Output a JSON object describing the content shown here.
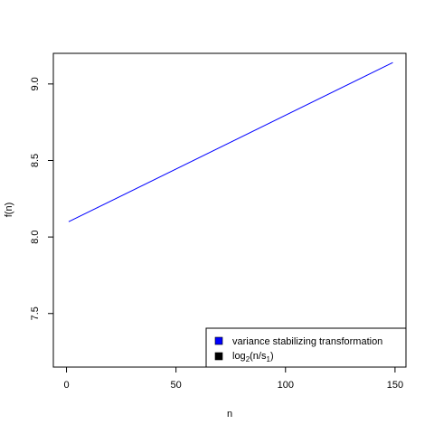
{
  "chart_data": {
    "type": "line",
    "title": "",
    "xlabel": "n",
    "ylabel": "f(n)",
    "xlim": [
      -6,
      155
    ],
    "ylim": [
      7.15,
      9.2
    ],
    "x_ticks": [
      0,
      50,
      100,
      150
    ],
    "y_ticks": [
      7.5,
      8.0,
      8.5,
      9.0
    ],
    "x_tick_labels": [
      "0",
      "50",
      "100",
      "150"
    ],
    "y_tick_labels": [
      "7.5",
      "8.0",
      "8.5",
      "9.0"
    ],
    "grid": false,
    "legend_position": "bottom-right",
    "series": [
      {
        "name": "variance stabilizing transformation",
        "color": "#0000ff",
        "x": [
          1,
          149
        ],
        "y": [
          8.1,
          9.14
        ]
      }
    ],
    "legend": {
      "items": [
        {
          "color": "#0000ff",
          "label": "variance stabilizing transformation"
        },
        {
          "color": "#000000",
          "label_parts": {
            "pre": "log",
            "sub1": "2",
            "mid": "(n/s",
            "sub2": "1",
            "post": ")"
          }
        }
      ]
    }
  }
}
